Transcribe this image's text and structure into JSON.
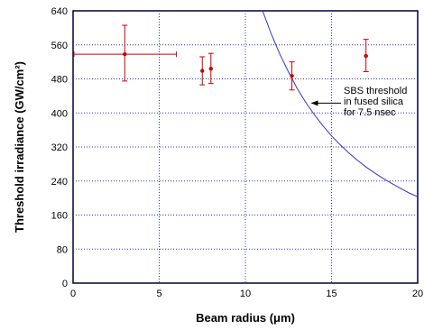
{
  "chart_data": {
    "type": "scatter",
    "xlabel": "Beam radius (μm)",
    "ylabel": "Threshold irradiance (GW/cm²)",
    "xlim": [
      0,
      20
    ],
    "ylim": [
      0,
      640
    ],
    "xticks": [
      0,
      5,
      10,
      15,
      20
    ],
    "yticks": [
      0,
      80,
      160,
      240,
      320,
      400,
      480,
      560,
      640
    ],
    "grid": true,
    "series": [
      {
        "kind": "points-with-errorbars",
        "color": "#cc0000",
        "points": [
          {
            "x": 3.0,
            "y": 538,
            "yerr_low": 475,
            "yerr_high": 606,
            "xerr_low": 0.0,
            "xerr_high": 6.0
          },
          {
            "x": 7.5,
            "y": 499,
            "yerr_low": 466,
            "yerr_high": 532
          },
          {
            "x": 8.0,
            "y": 504,
            "yerr_low": 469,
            "yerr_high": 540
          },
          {
            "x": 12.7,
            "y": 487,
            "yerr_low": 454,
            "yerr_high": 520
          },
          {
            "x": 17.0,
            "y": 534,
            "yerr_low": 497,
            "yerr_high": 573
          }
        ]
      },
      {
        "kind": "curve",
        "color": "#3333cc",
        "x": [
          10.85,
          11.0,
          11.5,
          12.0,
          12.5,
          13.0,
          13.5,
          14.0,
          14.5,
          15.0,
          15.5,
          16.0,
          16.5,
          17.0,
          17.5,
          18.0,
          18.5,
          19.0,
          19.5,
          20.0
        ],
        "y": [
          658,
          640,
          586,
          538,
          496,
          458,
          425,
          396,
          370,
          346,
          325,
          306,
          289,
          273,
          259,
          246,
          234,
          223,
          212,
          203
        ]
      }
    ],
    "annotations": [
      {
        "lines": [
          "SBS threshold",
          "in fused silica",
          "for 7.5 nsec"
        ],
        "arrow_to": {
          "x": 13.8,
          "y": 423
        }
      }
    ]
  }
}
